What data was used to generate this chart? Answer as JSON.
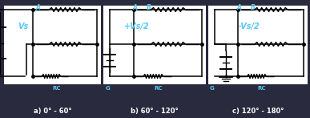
{
  "bg_color": "#2a2a3e",
  "panel_color": "#ffffff",
  "lc": "#000000",
  "tc": "#5bc8f5",
  "fig_w": 3.87,
  "fig_h": 1.47,
  "dpi": 100,
  "panels": [
    {
      "label": "a) 0° - 60°",
      "vlabel": "Vs",
      "bat": "full_left",
      "top_lbl": "A",
      "mid_lbl": "",
      "bot_lbl": "RC",
      "glbl": ""
    },
    {
      "label": "b) 60° - 120°",
      "vlabel": "+Vs/2",
      "bat": "half_left",
      "top_lbl": "A",
      "mid_lbl": "B",
      "bot_lbl": "RC",
      "glbl": "G"
    },
    {
      "label": "c) 120° - 180°",
      "vlabel": "-Vs/2",
      "bat": "mid_neg",
      "top_lbl": "A",
      "mid_lbl": "B",
      "bot_lbl": "RC",
      "glbl": "G"
    }
  ]
}
